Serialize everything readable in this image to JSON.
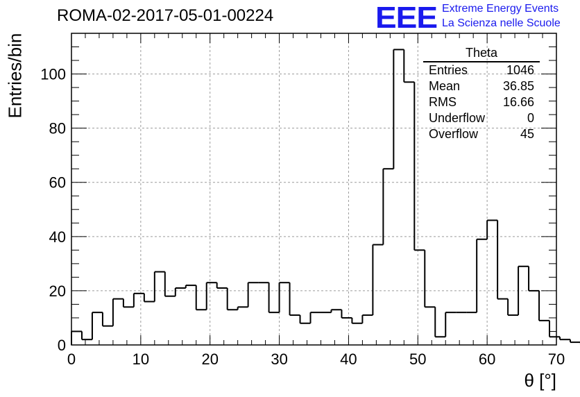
{
  "title": "ROMA-02-2017-05-01-00224",
  "logo": {
    "mark": "EEE",
    "line1": "Extreme Energy Events",
    "line2": "La Scienza nelle Scuole",
    "color": "#1a1aee"
  },
  "stats_box": {
    "title": "Theta",
    "rows": [
      {
        "label": "Entries",
        "value": "1046"
      },
      {
        "label": "Mean",
        "value": "36.85"
      },
      {
        "label": "RMS",
        "value": "16.66"
      },
      {
        "label": "Underflow",
        "value": "0"
      },
      {
        "label": "Overflow",
        "value": "45"
      }
    ]
  },
  "chart_data": {
    "type": "bar",
    "style": "step-histogram",
    "title": "ROMA-02-2017-05-01-00224",
    "xlabel": "θ [°]",
    "ylabel": "Entries/bin",
    "xlim": [
      0,
      70
    ],
    "ylim": [
      0,
      115
    ],
    "grid": true,
    "bin_width": 1.5,
    "bin_edges_start": 0,
    "values": [
      5,
      2,
      12,
      7,
      17,
      14,
      19,
      16,
      27,
      18,
      21,
      22,
      13,
      23,
      21,
      13,
      14,
      23,
      23,
      12,
      23,
      11,
      8,
      12,
      12,
      13,
      10,
      8,
      11,
      37,
      65,
      109,
      97,
      35,
      14,
      3,
      12,
      12,
      12,
      39,
      46,
      17,
      11,
      29,
      20,
      9,
      3,
      2,
      1
    ],
    "xticks": [
      0,
      10,
      20,
      30,
      40,
      50,
      60,
      70
    ],
    "yticks": [
      0,
      20,
      40,
      60,
      80,
      100
    ]
  }
}
